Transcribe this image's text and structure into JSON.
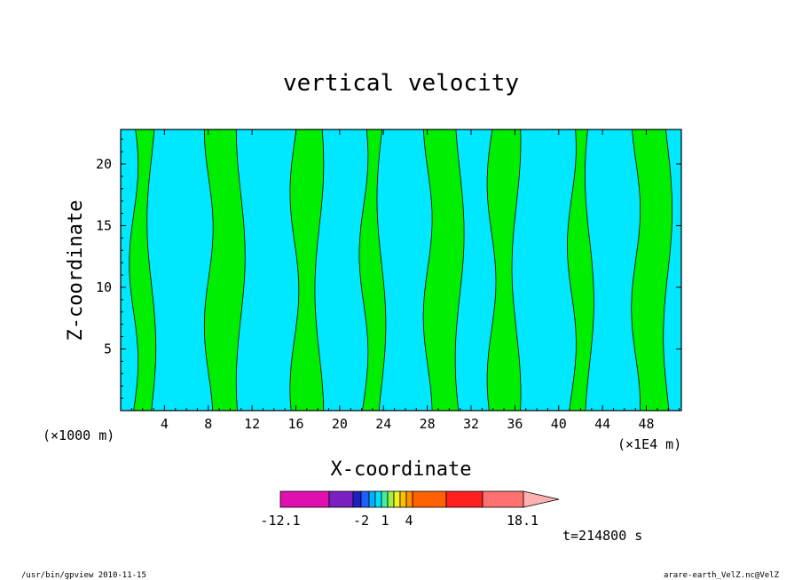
{
  "chart_data": {
    "type": "heatmap",
    "title": "vertical velocity",
    "xlabel": "X-coordinate",
    "ylabel": "Z-coordinate",
    "x_unit": "(×1000 m)",
    "x_unit_right": "(×1E4 m)",
    "x_ticks": [
      "4",
      "8",
      "12",
      "16",
      "20",
      "24",
      "28",
      "32",
      "36",
      "40",
      "44",
      "48"
    ],
    "y_ticks": [
      "5",
      "10",
      "15",
      "20"
    ],
    "xlim": [
      0,
      51.2
    ],
    "ylim": [
      0,
      22.8
    ],
    "timestamp": "t=214800 s",
    "colorbar": {
      "labels": [
        "-12.1",
        "-2",
        "1",
        "4",
        "18.1"
      ],
      "colors": [
        "#e010b0",
        "#7a20c0",
        "#2020c0",
        "#2060ff",
        "#00b0ff",
        "#00e0ff",
        "#40f0a0",
        "#a0f040",
        "#f0f020",
        "#ffc000",
        "#ff9000",
        "#ff6000",
        "#ff2020",
        "#ff7070",
        "#ffb0b0"
      ],
      "field_colors": {
        "negative": "#00e8ff",
        "positive": "#00ee00"
      }
    },
    "approx_columns": [
      {
        "x": 2.0,
        "sign": "positive"
      },
      {
        "x": 6.5,
        "sign": "negative"
      },
      {
        "x": 9.5,
        "sign": "positive"
      },
      {
        "x": 13.5,
        "sign": "negative"
      },
      {
        "x": 17.0,
        "sign": "positive"
      },
      {
        "x": 20.5,
        "sign": "negative"
      },
      {
        "x": 23.0,
        "sign": "positive"
      },
      {
        "x": 26.5,
        "sign": "negative"
      },
      {
        "x": 29.5,
        "sign": "positive"
      },
      {
        "x": 32.5,
        "sign": "negative"
      },
      {
        "x": 35.0,
        "sign": "positive"
      },
      {
        "x": 38.0,
        "sign": "negative"
      },
      {
        "x": 42.0,
        "sign": "positive"
      },
      {
        "x": 45.5,
        "sign": "negative"
      },
      {
        "x": 48.5,
        "sign": "positive"
      }
    ]
  },
  "footer": {
    "left": "/usr/bin/gpview  2010-11-15",
    "right": "arare-earth_VelZ.nc@VelZ"
  }
}
